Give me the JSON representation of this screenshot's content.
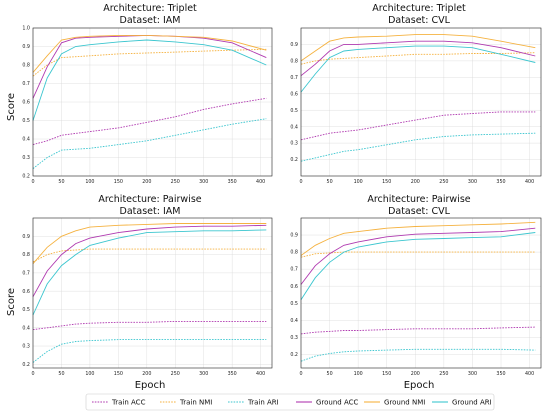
{
  "figure": {
    "ylabel": "Score",
    "xlabel": "Epoch"
  },
  "legend": {
    "placement": "bottom-center",
    "entries": [
      {
        "label": "Train ACC",
        "color": "#b03ab0",
        "dash": true
      },
      {
        "label": "Train NMI",
        "color": "#f5b240",
        "dash": true
      },
      {
        "label": "Train ARI",
        "color": "#3cc6cf",
        "dash": true
      },
      {
        "label": "Ground ACC",
        "color": "#b03ab0",
        "dash": false
      },
      {
        "label": "Ground NMI",
        "color": "#f5b240",
        "dash": false
      },
      {
        "label": "Ground ARI",
        "color": "#3cc6cf",
        "dash": false
      }
    ]
  },
  "chart_data": [
    {
      "type": "line",
      "title": "Architecture: Triplet",
      "subtitle": "Dataset: IAM",
      "xlim": [
        0,
        420
      ],
      "ylim": [
        0.2,
        1.0
      ],
      "grid": true,
      "x_ticks": [
        0,
        50,
        100,
        150,
        200,
        250,
        300,
        350,
        400
      ],
      "y_ticks": [
        0.2,
        0.3,
        0.4,
        0.5,
        0.6,
        0.7,
        0.8,
        0.9,
        1.0
      ],
      "y_tick_labels": [
        "0.2",
        "0.3",
        "0.4",
        "0.5",
        "0.6",
        "0.7",
        "0.8",
        "0.9",
        "1.0"
      ],
      "x": [
        0,
        25,
        50,
        75,
        100,
        150,
        200,
        250,
        300,
        350,
        410
      ],
      "series": [
        {
          "name": "Train ACC",
          "values": [
            0.37,
            0.39,
            0.42,
            0.43,
            0.44,
            0.46,
            0.49,
            0.52,
            0.56,
            0.59,
            0.62
          ]
        },
        {
          "name": "Train NMI",
          "values": [
            0.74,
            0.8,
            0.84,
            0.845,
            0.85,
            0.86,
            0.865,
            0.87,
            0.875,
            0.88,
            0.885
          ]
        },
        {
          "name": "Train ARI",
          "values": [
            0.24,
            0.3,
            0.34,
            0.345,
            0.35,
            0.37,
            0.39,
            0.42,
            0.45,
            0.48,
            0.51
          ]
        },
        {
          "name": "Ground ACC",
          "values": [
            0.62,
            0.79,
            0.92,
            0.945,
            0.95,
            0.955,
            0.96,
            0.955,
            0.945,
            0.92,
            0.84
          ]
        },
        {
          "name": "Ground NMI",
          "values": [
            0.76,
            0.85,
            0.935,
            0.95,
            0.955,
            0.96,
            0.96,
            0.955,
            0.95,
            0.93,
            0.88
          ]
        },
        {
          "name": "Ground ARI",
          "values": [
            0.5,
            0.73,
            0.86,
            0.9,
            0.91,
            0.925,
            0.935,
            0.925,
            0.91,
            0.88,
            0.8
          ]
        }
      ]
    },
    {
      "type": "line",
      "title": "Architecture: Triplet",
      "subtitle": "Dataset: CVL",
      "xlim": [
        0,
        420
      ],
      "ylim": [
        0.1,
        1.0
      ],
      "grid": true,
      "x_ticks": [
        0,
        50,
        100,
        150,
        200,
        250,
        300,
        350,
        400
      ],
      "y_ticks": [
        0.2,
        0.3,
        0.4,
        0.5,
        0.6,
        0.7,
        0.8,
        0.9
      ],
      "y_tick_labels": [
        "0.2",
        "0.3",
        "0.4",
        "0.5",
        "0.6",
        "0.7",
        "0.8",
        "0.9"
      ],
      "x": [
        0,
        25,
        50,
        75,
        100,
        150,
        200,
        250,
        300,
        350,
        410
      ],
      "series": [
        {
          "name": "Train ACC",
          "values": [
            0.32,
            0.34,
            0.36,
            0.37,
            0.38,
            0.41,
            0.44,
            0.47,
            0.48,
            0.49,
            0.49
          ]
        },
        {
          "name": "Train NMI",
          "values": [
            0.78,
            0.8,
            0.81,
            0.815,
            0.82,
            0.83,
            0.84,
            0.84,
            0.845,
            0.845,
            0.85
          ]
        },
        {
          "name": "Train ARI",
          "values": [
            0.19,
            0.21,
            0.23,
            0.25,
            0.26,
            0.29,
            0.32,
            0.34,
            0.35,
            0.355,
            0.36
          ]
        },
        {
          "name": "Ground ACC",
          "values": [
            0.71,
            0.78,
            0.86,
            0.9,
            0.9,
            0.91,
            0.92,
            0.92,
            0.91,
            0.88,
            0.83
          ]
        },
        {
          "name": "Ground NMI",
          "values": [
            0.8,
            0.86,
            0.92,
            0.94,
            0.945,
            0.95,
            0.96,
            0.96,
            0.95,
            0.92,
            0.88
          ]
        },
        {
          "name": "Ground ARI",
          "values": [
            0.61,
            0.72,
            0.82,
            0.86,
            0.87,
            0.88,
            0.89,
            0.89,
            0.88,
            0.84,
            0.79
          ]
        }
      ]
    },
    {
      "type": "line",
      "title": "Architecture: Pairwise",
      "subtitle": "Dataset: IAM",
      "xlim": [
        0,
        420
      ],
      "ylim": [
        0.18,
        1.0
      ],
      "grid": true,
      "x_ticks": [
        0,
        50,
        100,
        150,
        200,
        250,
        300,
        350,
        400
      ],
      "y_ticks": [
        0.2,
        0.3,
        0.4,
        0.5,
        0.6,
        0.7,
        0.8,
        0.9
      ],
      "y_tick_labels": [
        "0.2",
        "0.3",
        "0.4",
        "0.5",
        "0.6",
        "0.7",
        "0.8",
        "0.9"
      ],
      "x": [
        0,
        25,
        50,
        75,
        100,
        150,
        200,
        250,
        300,
        350,
        410
      ],
      "series": [
        {
          "name": "Train ACC",
          "values": [
            0.39,
            0.4,
            0.41,
            0.42,
            0.425,
            0.43,
            0.43,
            0.435,
            0.435,
            0.435,
            0.435
          ]
        },
        {
          "name": "Train NMI",
          "values": [
            0.76,
            0.8,
            0.82,
            0.825,
            0.83,
            0.83,
            0.83,
            0.83,
            0.83,
            0.83,
            0.83
          ]
        },
        {
          "name": "Train ARI",
          "values": [
            0.21,
            0.27,
            0.31,
            0.325,
            0.33,
            0.335,
            0.335,
            0.335,
            0.335,
            0.335,
            0.335
          ]
        },
        {
          "name": "Ground ACC",
          "values": [
            0.57,
            0.71,
            0.8,
            0.86,
            0.89,
            0.92,
            0.94,
            0.95,
            0.955,
            0.955,
            0.96
          ]
        },
        {
          "name": "Ground NMI",
          "values": [
            0.75,
            0.84,
            0.9,
            0.93,
            0.95,
            0.96,
            0.965,
            0.97,
            0.97,
            0.97,
            0.97
          ]
        },
        {
          "name": "Ground ARI",
          "values": [
            0.47,
            0.64,
            0.74,
            0.8,
            0.85,
            0.89,
            0.92,
            0.925,
            0.93,
            0.93,
            0.935
          ]
        }
      ]
    },
    {
      "type": "line",
      "title": "Architecture: Pairwise",
      "subtitle": "Dataset: CVL",
      "xlim": [
        0,
        420
      ],
      "ylim": [
        0.12,
        1.0
      ],
      "grid": true,
      "x_ticks": [
        0,
        50,
        100,
        150,
        200,
        250,
        300,
        350,
        400
      ],
      "y_ticks": [
        0.2,
        0.3,
        0.4,
        0.5,
        0.6,
        0.7,
        0.8,
        0.9
      ],
      "y_tick_labels": [
        "0.2",
        "0.3",
        "0.4",
        "0.5",
        "0.6",
        "0.7",
        "0.8",
        "0.9"
      ],
      "x": [
        0,
        25,
        50,
        75,
        100,
        150,
        200,
        250,
        300,
        350,
        410
      ],
      "series": [
        {
          "name": "Train ACC",
          "values": [
            0.32,
            0.33,
            0.335,
            0.34,
            0.34,
            0.345,
            0.35,
            0.35,
            0.35,
            0.355,
            0.36
          ]
        },
        {
          "name": "Train NMI",
          "values": [
            0.77,
            0.79,
            0.795,
            0.8,
            0.8,
            0.8,
            0.8,
            0.8,
            0.8,
            0.8,
            0.8
          ]
        },
        {
          "name": "Train ARI",
          "values": [
            0.16,
            0.19,
            0.205,
            0.215,
            0.22,
            0.225,
            0.23,
            0.23,
            0.23,
            0.23,
            0.225
          ]
        },
        {
          "name": "Ground ACC",
          "values": [
            0.61,
            0.72,
            0.79,
            0.84,
            0.86,
            0.89,
            0.905,
            0.91,
            0.915,
            0.92,
            0.94
          ]
        },
        {
          "name": "Ground NMI",
          "values": [
            0.78,
            0.84,
            0.88,
            0.91,
            0.92,
            0.94,
            0.95,
            0.955,
            0.96,
            0.965,
            0.975
          ]
        },
        {
          "name": "Ground ARI",
          "values": [
            0.52,
            0.65,
            0.74,
            0.8,
            0.83,
            0.86,
            0.875,
            0.88,
            0.885,
            0.89,
            0.915
          ]
        }
      ]
    }
  ]
}
